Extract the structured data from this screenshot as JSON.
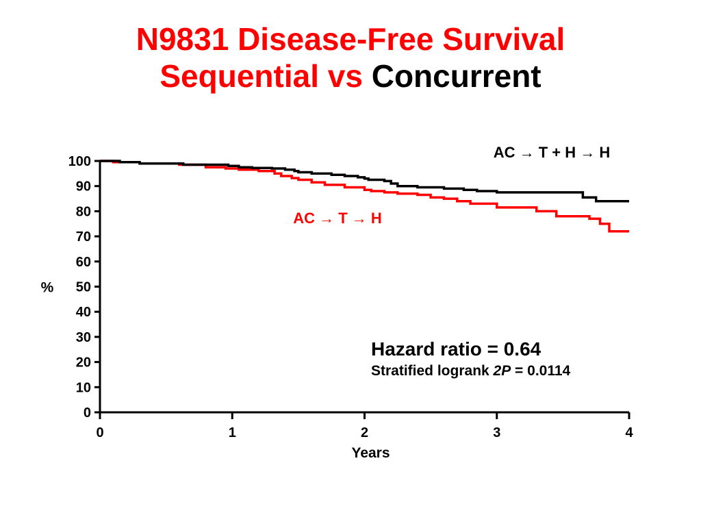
{
  "title": {
    "line1": "N9831 Disease-Free Survival",
    "line2_red": "Sequential vs",
    "line2_black": "Concurrent"
  },
  "annotation": {
    "hazard_ratio": "Hazard ratio = 0.64",
    "p_prefix": "Stratified logrank ",
    "p_italic": "2P",
    "p_suffix": " = 0.0114"
  },
  "colors": {
    "title": "#ff0000",
    "sequential": "#ff0000",
    "concurrent": "#000000"
  },
  "chart_data": {
    "type": "line",
    "xlabel": "Years",
    "ylabel": "%",
    "xlim": [
      0,
      4
    ],
    "ylim": [
      0,
      100
    ],
    "xticks": [
      0,
      1,
      2,
      3,
      4
    ],
    "yticks": [
      0,
      10,
      20,
      30,
      40,
      50,
      60,
      70,
      80,
      90,
      100
    ],
    "grid": false,
    "series": [
      {
        "name": "AC → T + H → H",
        "color": "#000000",
        "step": true,
        "x": [
          0,
          0.15,
          0.3,
          0.55,
          0.63,
          0.9,
          0.97,
          1.05,
          1.15,
          1.3,
          1.4,
          1.47,
          1.5,
          1.6,
          1.75,
          1.85,
          1.95,
          2.0,
          2.03,
          2.15,
          2.2,
          2.25,
          2.4,
          2.6,
          2.75,
          2.85,
          3.0,
          3.2,
          3.4,
          3.6,
          3.65,
          3.75,
          4.0
        ],
        "y": [
          100,
          99.5,
          99,
          99,
          98.5,
          98.5,
          98,
          97.5,
          97.2,
          97,
          96.5,
          96,
          95.5,
          95,
          94.5,
          94,
          93.5,
          93,
          92.5,
          92,
          91,
          90,
          89.5,
          89,
          88.5,
          88,
          87.5,
          87.5,
          87.5,
          87.5,
          85.5,
          84,
          84
        ]
      },
      {
        "name": "AC → T → H",
        "color": "#ff0000",
        "step": true,
        "x": [
          0,
          0.1,
          0.3,
          0.6,
          0.8,
          0.95,
          1.05,
          1.2,
          1.32,
          1.37,
          1.45,
          1.5,
          1.6,
          1.7,
          1.85,
          2.0,
          2.05,
          2.15,
          2.25,
          2.4,
          2.5,
          2.6,
          2.7,
          2.8,
          3.0,
          3.15,
          3.3,
          3.45,
          3.7,
          3.78,
          3.85,
          4.0
        ],
        "y": [
          100,
          99.5,
          99,
          98.5,
          97.5,
          97,
          96.5,
          96,
          95,
          94,
          93.2,
          92.5,
          91.5,
          90.5,
          89.5,
          88.5,
          88,
          87.5,
          87,
          86.5,
          85.5,
          85,
          84,
          83,
          81.5,
          81.5,
          80,
          78,
          77,
          75,
          72,
          72
        ]
      }
    ]
  }
}
